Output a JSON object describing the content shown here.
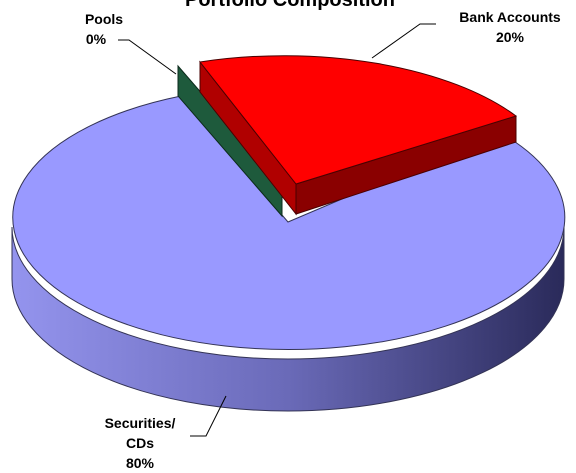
{
  "chart_data": {
    "type": "pie",
    "title": "Portfolio Composition",
    "three_d": true,
    "slices": [
      {
        "label": "Bank Accounts",
        "value": 20,
        "percent_label": "20%",
        "color": "#ff0000",
        "side_color": "#990000",
        "exploded": true
      },
      {
        "label": "Securities/ CDs",
        "label_lines": [
          "Securities/",
          "CDs"
        ],
        "value": 80,
        "percent_label": "80%",
        "color": "#9999ff",
        "side_color": "#5c5ca8"
      },
      {
        "label": "Pools",
        "value": 0,
        "percent_label": "0%",
        "color": "#1e5a3c",
        "side_color": "#123a27",
        "exploded": true
      }
    ]
  }
}
